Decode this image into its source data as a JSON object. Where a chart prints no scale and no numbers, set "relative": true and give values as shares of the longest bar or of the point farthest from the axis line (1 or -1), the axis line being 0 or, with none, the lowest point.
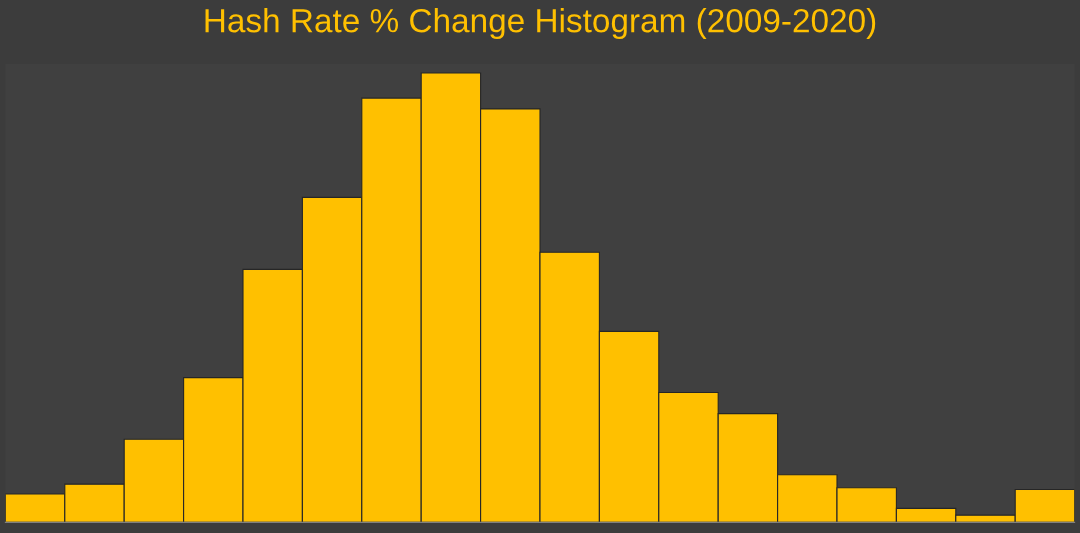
{
  "chart_data": {
    "type": "bar",
    "title": "Hash Rate % Change Histogram (2009-2020)",
    "relative": true,
    "color": "#ffc000",
    "categories": [
      null,
      null,
      null,
      null,
      null,
      null,
      null,
      null,
      null,
      null,
      null,
      null,
      null,
      null,
      null,
      null,
      null,
      null
    ],
    "values": [
      0.063,
      0.085,
      0.185,
      0.322,
      0.563,
      0.723,
      0.944,
      1,
      0.92,
      0.601,
      0.425,
      0.289,
      0.242,
      0.106,
      0.077,
      0.031,
      0.016,
      0.073
    ]
  }
}
